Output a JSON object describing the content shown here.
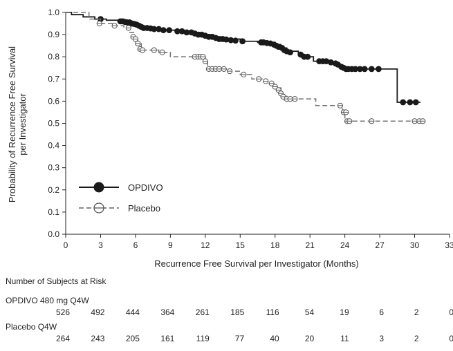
{
  "chart_data": {
    "type": "line",
    "title": "",
    "xlabel": "Recurrence Free Survival per Investigator (Months)",
    "ylabel": "Probability of Recurrence Free Survival per Investigator",
    "xlim": [
      0,
      33
    ],
    "ylim": [
      0.0,
      1.0
    ],
    "x_ticks": [
      0,
      3,
      6,
      9,
      12,
      15,
      18,
      21,
      24,
      27,
      30,
      33
    ],
    "y_ticks": [
      "0.0",
      "0.1",
      "0.2",
      "0.3",
      "0.4",
      "0.5",
      "0.6",
      "0.7",
      "0.8",
      "0.9",
      "1.0"
    ],
    "grid": false,
    "legend_position": "lower-left",
    "series": [
      {
        "name": "OPDIVO",
        "color": "#1a1a1a",
        "line_style": "solid",
        "marker": "filled-circle",
        "steps": [
          [
            0,
            1.0
          ],
          [
            0.5,
            0.99
          ],
          [
            1.5,
            0.98
          ],
          [
            2.5,
            0.97
          ],
          [
            3.5,
            0.965
          ],
          [
            4.5,
            0.96
          ],
          [
            5.5,
            0.955
          ],
          [
            6.0,
            0.945
          ],
          [
            6.5,
            0.935
          ],
          [
            7.5,
            0.925
          ],
          [
            8.5,
            0.92
          ],
          [
            9.5,
            0.915
          ],
          [
            10.5,
            0.91
          ],
          [
            11.5,
            0.9
          ],
          [
            12.5,
            0.89
          ],
          [
            13.5,
            0.88
          ],
          [
            15.0,
            0.87
          ],
          [
            16.5,
            0.865
          ],
          [
            18.0,
            0.855
          ],
          [
            18.5,
            0.84
          ],
          [
            19.0,
            0.825
          ],
          [
            20.0,
            0.81
          ],
          [
            20.5,
            0.8
          ],
          [
            21.3,
            0.78
          ],
          [
            22.5,
            0.775
          ],
          [
            23.0,
            0.77
          ],
          [
            23.5,
            0.755
          ],
          [
            24.0,
            0.745
          ],
          [
            28.5,
            0.595
          ],
          [
            30.5,
            0.595
          ]
        ],
        "censored": [
          [
            3.0,
            0.97
          ],
          [
            4.7,
            0.96
          ],
          [
            4.9,
            0.96
          ],
          [
            5.1,
            0.957
          ],
          [
            5.3,
            0.955
          ],
          [
            5.5,
            0.955
          ],
          [
            5.7,
            0.95
          ],
          [
            5.9,
            0.948
          ],
          [
            6.1,
            0.945
          ],
          [
            6.3,
            0.94
          ],
          [
            6.5,
            0.935
          ],
          [
            6.7,
            0.93
          ],
          [
            7.0,
            0.93
          ],
          [
            7.3,
            0.928
          ],
          [
            7.6,
            0.925
          ],
          [
            8.0,
            0.925
          ],
          [
            8.4,
            0.92
          ],
          [
            8.9,
            0.92
          ],
          [
            9.6,
            0.915
          ],
          [
            10.0,
            0.915
          ],
          [
            10.4,
            0.91
          ],
          [
            10.8,
            0.91
          ],
          [
            11.1,
            0.905
          ],
          [
            11.4,
            0.9
          ],
          [
            11.7,
            0.9
          ],
          [
            12.0,
            0.895
          ],
          [
            12.3,
            0.89
          ],
          [
            12.6,
            0.89
          ],
          [
            12.9,
            0.885
          ],
          [
            13.2,
            0.88
          ],
          [
            13.5,
            0.88
          ],
          [
            13.8,
            0.878
          ],
          [
            14.2,
            0.875
          ],
          [
            14.6,
            0.873
          ],
          [
            15.2,
            0.87
          ],
          [
            16.8,
            0.865
          ],
          [
            17.0,
            0.865
          ],
          [
            17.3,
            0.862
          ],
          [
            17.6,
            0.86
          ],
          [
            17.9,
            0.855
          ],
          [
            18.1,
            0.85
          ],
          [
            18.3,
            0.845
          ],
          [
            18.6,
            0.84
          ],
          [
            18.8,
            0.83
          ],
          [
            19.0,
            0.825
          ],
          [
            19.3,
            0.82
          ],
          [
            20.2,
            0.81
          ],
          [
            20.5,
            0.8
          ],
          [
            20.8,
            0.8
          ],
          [
            21.8,
            0.78
          ],
          [
            22.1,
            0.78
          ],
          [
            22.4,
            0.78
          ],
          [
            22.8,
            0.775
          ],
          [
            23.2,
            0.77
          ],
          [
            23.4,
            0.765
          ],
          [
            23.7,
            0.755
          ],
          [
            23.9,
            0.75
          ],
          [
            24.1,
            0.745
          ],
          [
            24.3,
            0.745
          ],
          [
            24.6,
            0.745
          ],
          [
            24.9,
            0.745
          ],
          [
            25.3,
            0.745
          ],
          [
            25.7,
            0.745
          ],
          [
            26.3,
            0.745
          ],
          [
            26.9,
            0.745
          ],
          [
            29.0,
            0.595
          ],
          [
            29.6,
            0.595
          ],
          [
            30.1,
            0.595
          ]
        ]
      },
      {
        "name": "Placebo",
        "color": "#777777",
        "line_style": "dashed",
        "marker": "open-circle",
        "steps": [
          [
            0,
            1.0
          ],
          [
            2.0,
            0.97
          ],
          [
            3.0,
            0.95
          ],
          [
            4.0,
            0.94
          ],
          [
            5.0,
            0.93
          ],
          [
            5.5,
            0.91
          ],
          [
            5.9,
            0.89
          ],
          [
            6.0,
            0.88
          ],
          [
            6.2,
            0.86
          ],
          [
            6.5,
            0.83
          ],
          [
            8.0,
            0.82
          ],
          [
            9.0,
            0.8
          ],
          [
            11.5,
            0.8
          ],
          [
            12.0,
            0.78
          ],
          [
            12.2,
            0.745
          ],
          [
            14.0,
            0.735
          ],
          [
            15.0,
            0.72
          ],
          [
            16.0,
            0.7
          ],
          [
            17.0,
            0.69
          ],
          [
            17.5,
            0.68
          ],
          [
            18.0,
            0.66
          ],
          [
            18.5,
            0.63
          ],
          [
            19.0,
            0.61
          ],
          [
            21.0,
            0.61
          ],
          [
            21.5,
            0.58
          ],
          [
            23.5,
            0.58
          ],
          [
            23.8,
            0.55
          ],
          [
            24.0,
            0.51
          ],
          [
            30.8,
            0.51
          ]
        ],
        "censored": [
          [
            2.9,
            0.95
          ],
          [
            4.2,
            0.94
          ],
          [
            5.4,
            0.93
          ],
          [
            5.8,
            0.89
          ],
          [
            6.0,
            0.88
          ],
          [
            6.2,
            0.86
          ],
          [
            6.4,
            0.835
          ],
          [
            6.6,
            0.83
          ],
          [
            7.6,
            0.83
          ],
          [
            8.3,
            0.82
          ],
          [
            11.1,
            0.8
          ],
          [
            11.4,
            0.8
          ],
          [
            11.6,
            0.8
          ],
          [
            11.8,
            0.8
          ],
          [
            12.0,
            0.78
          ],
          [
            12.3,
            0.745
          ],
          [
            12.6,
            0.745
          ],
          [
            12.9,
            0.745
          ],
          [
            13.2,
            0.745
          ],
          [
            13.6,
            0.745
          ],
          [
            14.1,
            0.735
          ],
          [
            15.3,
            0.72
          ],
          [
            16.6,
            0.7
          ],
          [
            17.2,
            0.69
          ],
          [
            17.7,
            0.68
          ],
          [
            18.0,
            0.665
          ],
          [
            18.3,
            0.65
          ],
          [
            18.5,
            0.635
          ],
          [
            18.7,
            0.62
          ],
          [
            19.0,
            0.61
          ],
          [
            19.3,
            0.61
          ],
          [
            19.7,
            0.61
          ],
          [
            23.6,
            0.58
          ],
          [
            23.9,
            0.55
          ],
          [
            24.1,
            0.55
          ],
          [
            24.2,
            0.51
          ],
          [
            24.4,
            0.51
          ],
          [
            26.3,
            0.51
          ],
          [
            30.0,
            0.51
          ],
          [
            30.4,
            0.51
          ],
          [
            30.7,
            0.51
          ]
        ]
      }
    ],
    "risk_table": {
      "header": "Number of Subjects at Risk",
      "rows": [
        {
          "label": "OPDIVO 480 mg Q4W",
          "values": [
            "526",
            "492",
            "444",
            "364",
            "261",
            "185",
            "116",
            "54",
            "19",
            "6",
            "2",
            "0"
          ]
        },
        {
          "label": "Placebo Q4W",
          "values": [
            "264",
            "243",
            "205",
            "161",
            "119",
            "77",
            "40",
            "20",
            "11",
            "3",
            "2",
            "0"
          ]
        }
      ]
    }
  }
}
